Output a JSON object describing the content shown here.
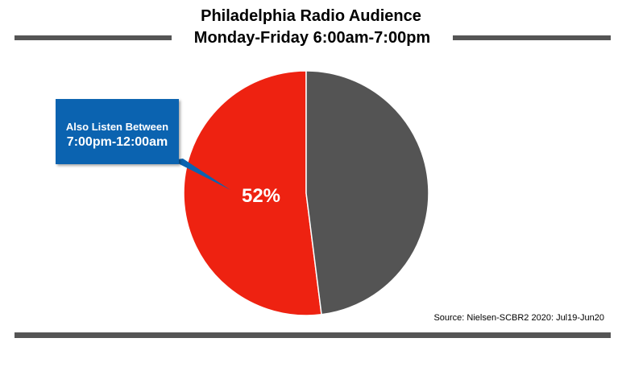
{
  "chart_data": {
    "type": "pie",
    "title": "Philadelphia Radio Audience",
    "subtitle": "Monday-Friday 6:00am-7:00pm",
    "slices": [
      {
        "label": "Also Listen Between 7:00pm-12:00am",
        "value": 52,
        "display": "52%",
        "color": "#ee2211"
      },
      {
        "label": "",
        "value": 48,
        "display": "",
        "color": "#545454"
      }
    ],
    "callout": {
      "line1": "Also Listen Between",
      "line2": "7:00pm-12:00am",
      "color": "#0b63b0"
    },
    "source": "Source: Nielsen-SCBR2 2020: Jul19-Jun20",
    "legend": "none"
  }
}
